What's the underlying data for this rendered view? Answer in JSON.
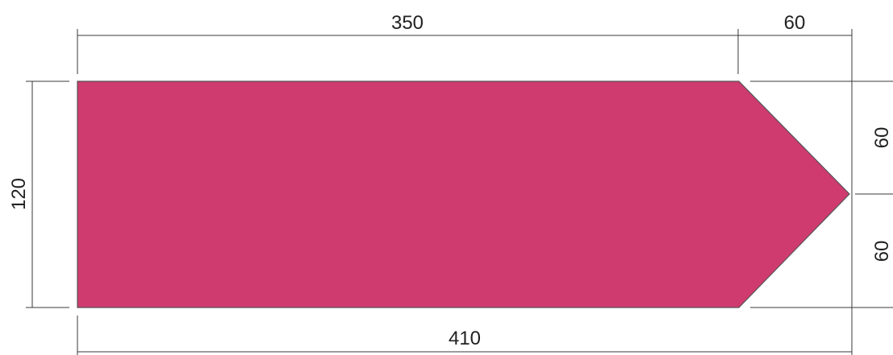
{
  "shape": {
    "fill_color": "#cf3b6f",
    "outline_color": "#555555"
  },
  "dimensions": {
    "top_left_length": "350",
    "top_right_length": "60",
    "bottom_total_length": "410",
    "left_height": "120",
    "right_upper_height": "60",
    "right_lower_height": "60"
  }
}
